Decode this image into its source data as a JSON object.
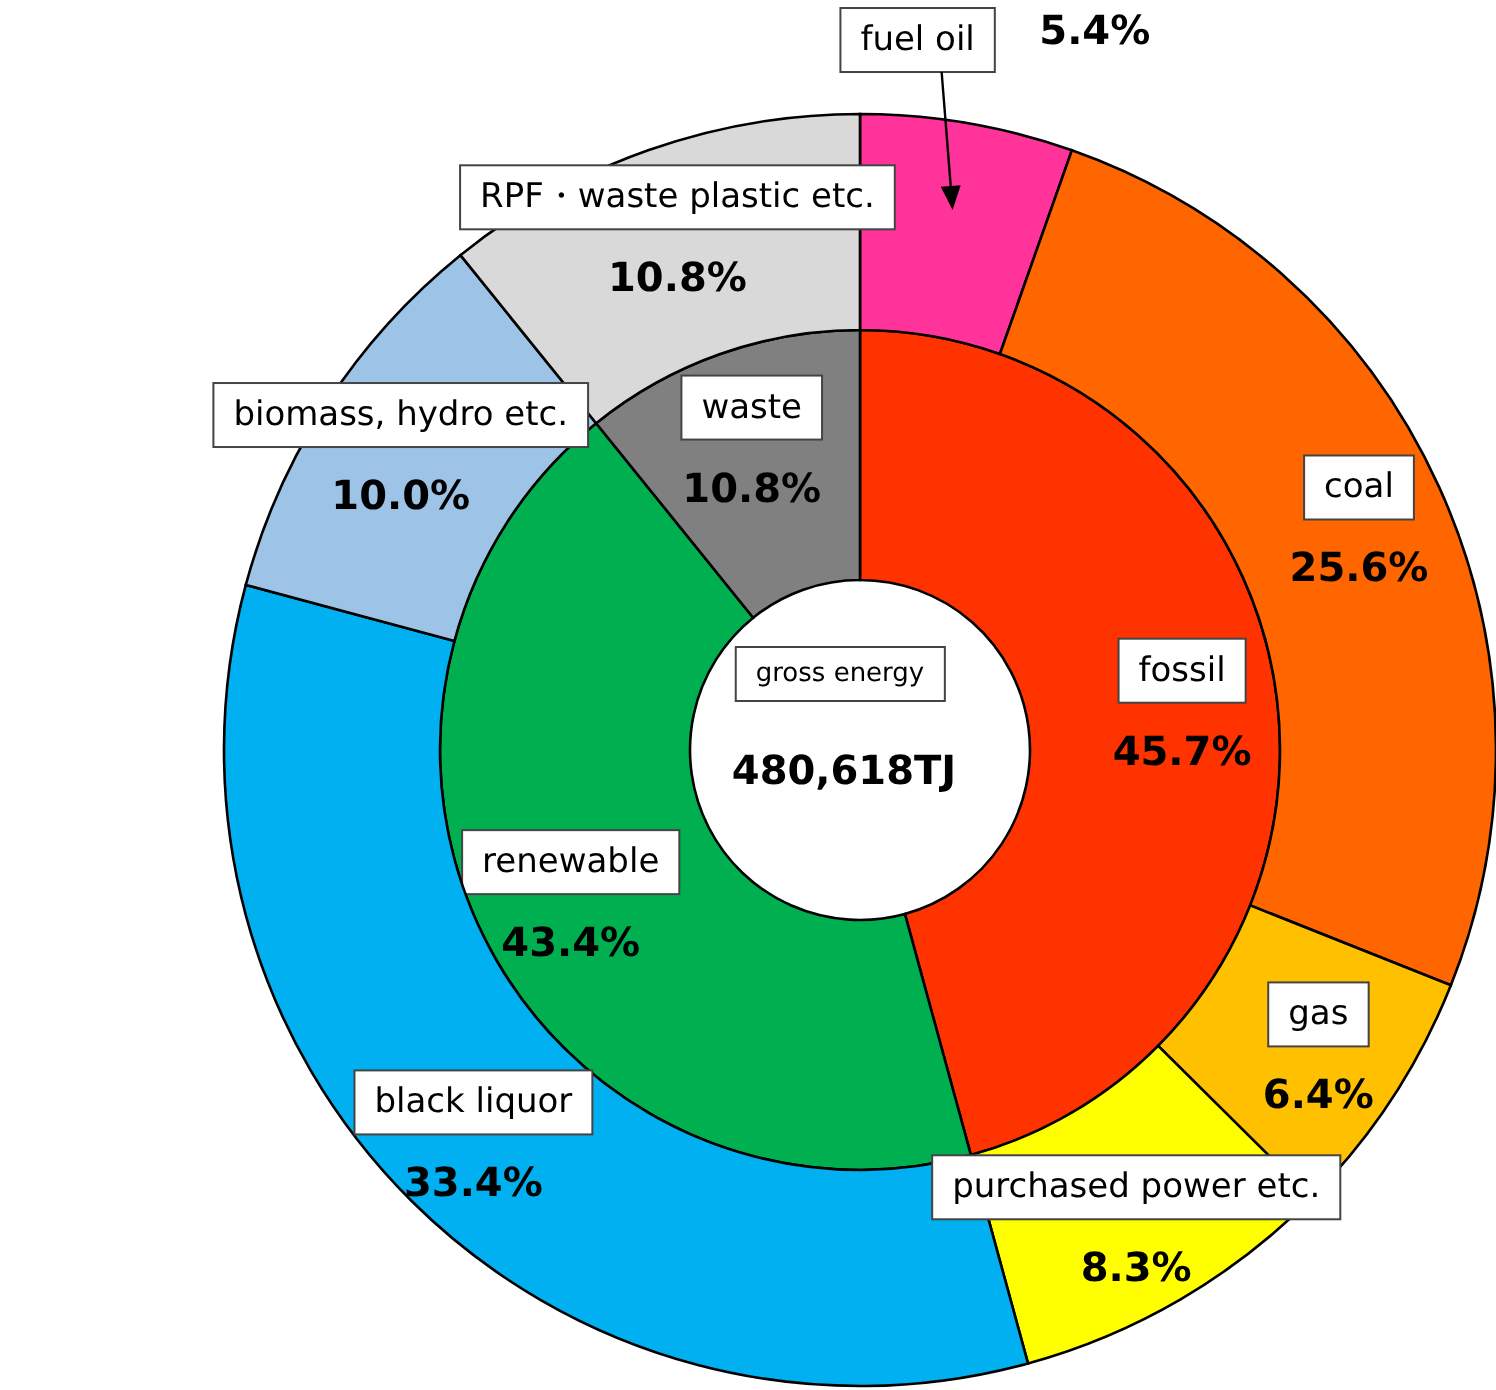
{
  "chart_data": [
    {
      "type": "donut",
      "categories": [
        "fossil",
        "renewable",
        "waste"
      ],
      "values": [
        45.7,
        43.4,
        10.8
      ],
      "value_labels": [
        "45.7%",
        "43.4%",
        "10.8%"
      ],
      "colors": [
        "#ff3300",
        "#00b050",
        "#808080"
      ],
      "annotations": [
        "gross energy",
        "480,618TJ"
      ]
    },
    {
      "type": "donut",
      "categories": [
        "fuel oil",
        "coal",
        "gas",
        "purchased power etc.",
        "black liquor",
        "biomass, hydro etc.",
        "RPF・waste plastic etc."
      ],
      "values": [
        5.4,
        25.6,
        6.4,
        8.3,
        33.4,
        10.0,
        10.8
      ],
      "value_labels": [
        "5.4%",
        "25.6%",
        "6.4%",
        "8.3%",
        "33.4%",
        "10.0%",
        "10.8%"
      ],
      "colors": [
        "#ff3399",
        "#ff6600",
        "#ffc000",
        "#ffff00",
        "#00b0f0",
        "#9dc3e6",
        "#d9d9d9"
      ]
    }
  ]
}
